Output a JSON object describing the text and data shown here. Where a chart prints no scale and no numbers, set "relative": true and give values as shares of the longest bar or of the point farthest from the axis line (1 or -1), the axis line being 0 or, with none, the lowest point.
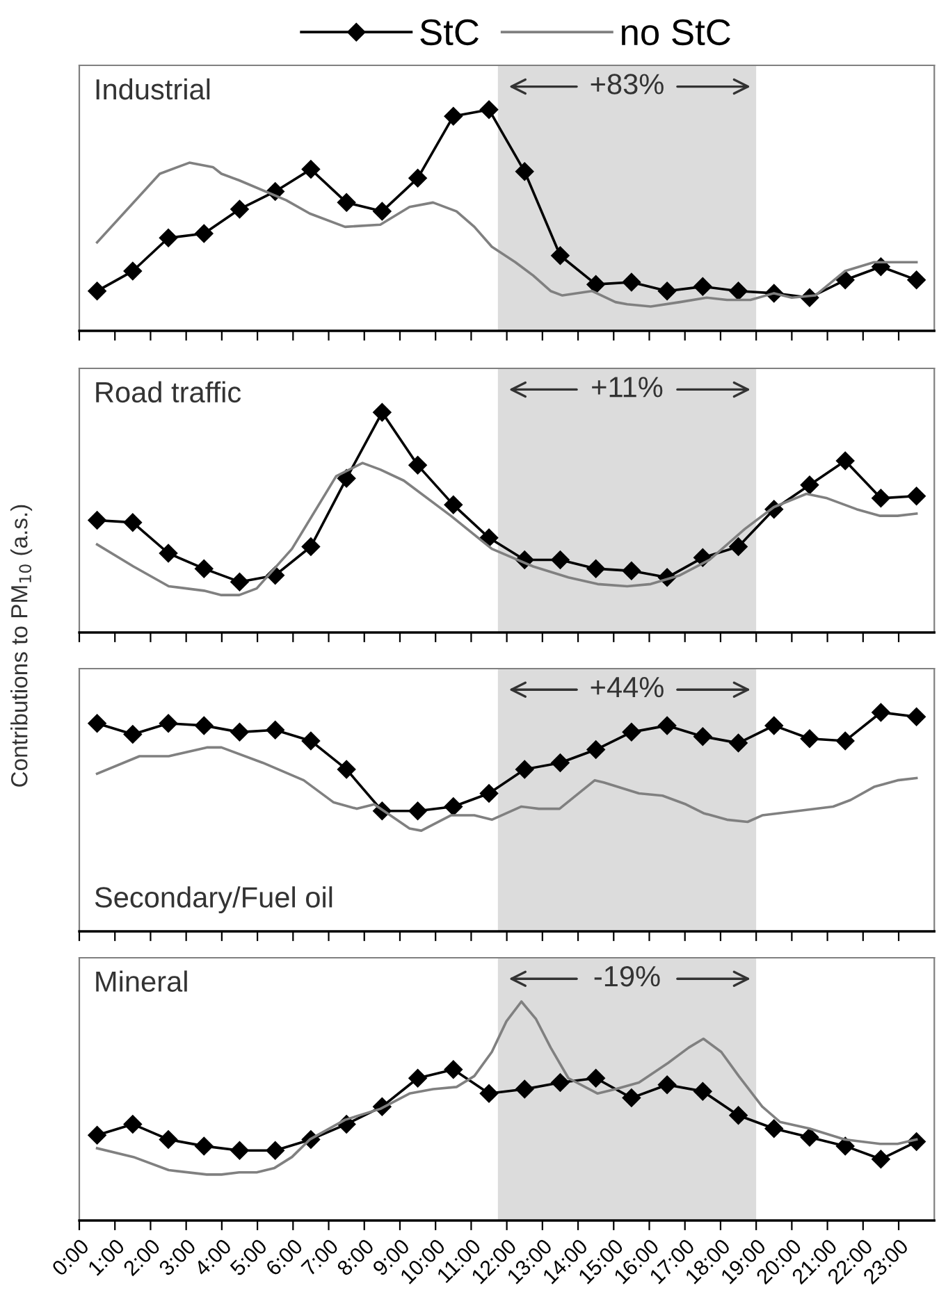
{
  "chart_data": [
    {
      "type": "line",
      "title": "Industrial",
      "relative": true,
      "xlim": [
        0,
        24
      ],
      "xticks": [
        0,
        1,
        2,
        3,
        4,
        5,
        6,
        7,
        8,
        9,
        10,
        11,
        12,
        13,
        14,
        15,
        16,
        17,
        18,
        19,
        20,
        21,
        22,
        23
      ],
      "tick_labels": false,
      "legend": "top",
      "bands": [
        {
          "axis": "x",
          "from": 11.75,
          "to": 19,
          "label": "+83%",
          "color": "#dcdcdc"
        }
      ],
      "series": [
        {
          "name": "StC",
          "color": "#000000",
          "marker": "diamond",
          "x": [
            0.5,
            1.5,
            2.5,
            3.5,
            4.5,
            5.5,
            6.5,
            7.5,
            8.5,
            9.5,
            10.5,
            11.5,
            12.5,
            13.5,
            14.5,
            15.5,
            16.5,
            17.5,
            18.5,
            19.5,
            20.5,
            21.5,
            22.5,
            23.5
          ],
          "values": [
            0.18,
            0.27,
            0.42,
            0.44,
            0.55,
            0.63,
            0.73,
            0.58,
            0.54,
            0.69,
            0.97,
            1.0,
            0.72,
            0.34,
            0.21,
            0.22,
            0.18,
            0.2,
            0.18,
            0.17,
            0.15,
            0.23,
            0.29,
            0.23
          ]
        },
        {
          "name": "no StC",
          "color": "#808080",
          "x": [
            0.5,
            2.26,
            3.09,
            3.75,
            3.99,
            4.49,
            5.81,
            6.47,
            7.46,
            8.45,
            9.27,
            9.93,
            10.59,
            11.09,
            11.58,
            12.24,
            12.74,
            13.23,
            13.56,
            14.39,
            15.05,
            15.38,
            16.04,
            16.86,
            17.61,
            18.18,
            18.84,
            19.5,
            20.0,
            20.66,
            21.49,
            22.31,
            22.97,
            23.5
          ],
          "values": [
            0.4,
            0.71,
            0.76,
            0.74,
            0.71,
            0.68,
            0.59,
            0.53,
            0.47,
            0.48,
            0.56,
            0.58,
            0.54,
            0.47,
            0.38,
            0.31,
            0.25,
            0.18,
            0.16,
            0.18,
            0.13,
            0.12,
            0.11,
            0.13,
            0.15,
            0.14,
            0.14,
            0.17,
            0.15,
            0.16,
            0.27,
            0.31,
            0.31,
            0.31
          ]
        }
      ]
    },
    {
      "type": "line",
      "title": "Road traffic",
      "ylabel": "Contributions to PM$_{10}$ (a.s.)",
      "relative": true,
      "xlim": [
        0,
        24
      ],
      "xticks": [
        0,
        1,
        2,
        3,
        4,
        5,
        6,
        7,
        8,
        9,
        10,
        11,
        12,
        13,
        14,
        15,
        16,
        17,
        18,
        19,
        20,
        21,
        22,
        23
      ],
      "tick_labels": false,
      "bands": [
        {
          "axis": "x",
          "from": 11.75,
          "to": 19,
          "label": "+11%",
          "color": "#dcdcdc"
        }
      ],
      "series": [
        {
          "color": "#000000",
          "marker": "diamond",
          "x": [
            0.5,
            1.5,
            2.5,
            3.5,
            4.5,
            5.5,
            6.5,
            7.5,
            8.5,
            9.5,
            10.5,
            11.5,
            12.5,
            13.5,
            14.5,
            15.5,
            16.5,
            17.5,
            18.5,
            19.5,
            20.5,
            21.5,
            22.5,
            23.5
          ],
          "values": [
            0.51,
            0.5,
            0.36,
            0.29,
            0.23,
            0.26,
            0.39,
            0.7,
            1.0,
            0.76,
            0.58,
            0.43,
            0.33,
            0.33,
            0.29,
            0.28,
            0.25,
            0.34,
            0.39,
            0.56,
            0.67,
            0.78,
            0.61,
            0.62
          ]
        },
        {
          "color": "#808080",
          "x": [
            0.5,
            1.52,
            2.51,
            3.5,
            3.99,
            4.49,
            4.98,
            5.97,
            7.21,
            7.95,
            8.45,
            9.11,
            10.43,
            11.58,
            12.74,
            13.73,
            14.55,
            15.38,
            16.04,
            16.86,
            17.69,
            18.68,
            19.5,
            20.41,
            20.99,
            21.82,
            22.48,
            22.97,
            23.5
          ],
          "values": [
            0.4,
            0.3,
            0.21,
            0.19,
            0.17,
            0.17,
            0.2,
            0.38,
            0.71,
            0.77,
            0.74,
            0.69,
            0.53,
            0.38,
            0.3,
            0.25,
            0.22,
            0.21,
            0.22,
            0.26,
            0.33,
            0.47,
            0.57,
            0.63,
            0.61,
            0.56,
            0.53,
            0.53,
            0.54
          ]
        }
      ]
    },
    {
      "type": "line",
      "title": "Secondary/Fuel oil",
      "relative": true,
      "xlim": [
        0,
        24
      ],
      "xticks": [
        0,
        1,
        2,
        3,
        4,
        5,
        6,
        7,
        8,
        9,
        10,
        11,
        12,
        13,
        14,
        15,
        16,
        17,
        18,
        19,
        20,
        21,
        22,
        23
      ],
      "tick_labels": false,
      "bands": [
        {
          "axis": "x",
          "from": 11.75,
          "to": 19,
          "label": "+44%",
          "color": "#dcdcdc"
        }
      ],
      "series": [
        {
          "color": "#000000",
          "marker": "diamond",
          "x": [
            0.5,
            1.5,
            2.5,
            3.5,
            4.5,
            5.5,
            6.5,
            7.5,
            8.5,
            9.5,
            10.5,
            11.5,
            12.5,
            13.5,
            14.5,
            15.5,
            16.5,
            17.5,
            18.5,
            19.5,
            20.5,
            21.5,
            22.5,
            23.5
          ],
          "values": [
            0.95,
            0.9,
            0.95,
            0.94,
            0.91,
            0.92,
            0.87,
            0.74,
            0.55,
            0.55,
            0.57,
            0.63,
            0.74,
            0.77,
            0.83,
            0.91,
            0.94,
            0.89,
            0.86,
            0.94,
            0.88,
            0.87,
            1.0,
            0.98
          ]
        },
        {
          "color": "#808080",
          "x": [
            0.5,
            1.69,
            2.51,
            3.58,
            3.99,
            5.15,
            6.3,
            7.13,
            7.79,
            8.28,
            9.27,
            9.6,
            10.43,
            11.09,
            11.58,
            12.41,
            12.9,
            13.48,
            14.47,
            14.72,
            15.71,
            16.37,
            17.03,
            17.52,
            18.18,
            18.76,
            19.17,
            20.17,
            21.16,
            21.65,
            22.31,
            22.97,
            23.5
          ],
          "values": [
            0.72,
            0.8,
            0.8,
            0.84,
            0.84,
            0.77,
            0.69,
            0.59,
            0.56,
            0.58,
            0.47,
            0.46,
            0.53,
            0.53,
            0.51,
            0.57,
            0.56,
            0.56,
            0.69,
            0.68,
            0.63,
            0.62,
            0.58,
            0.54,
            0.51,
            0.5,
            0.53,
            0.55,
            0.57,
            0.6,
            0.66,
            0.69,
            0.7
          ]
        }
      ]
    },
    {
      "type": "line",
      "title": "Mineral",
      "relative": true,
      "xlim": [
        0,
        24
      ],
      "tick_labels": "x",
      "xticks": [
        {
          "value": 0,
          "label": "0:00"
        },
        {
          "value": 1,
          "label": "1:00"
        },
        {
          "value": 2,
          "label": "2:00"
        },
        {
          "value": 3,
          "label": "3:00"
        },
        {
          "value": 4,
          "label": "4:00"
        },
        {
          "value": 5,
          "label": "5:00"
        },
        {
          "value": 6,
          "label": "6:00"
        },
        {
          "value": 7,
          "label": "7:00"
        },
        {
          "value": 8,
          "label": "8:00"
        },
        {
          "value": 9,
          "label": "9:00"
        },
        {
          "value": 10,
          "label": "10:00"
        },
        {
          "value": 11,
          "label": "11:00"
        },
        {
          "value": 12,
          "label": "12:00"
        },
        {
          "value": 13,
          "label": "13:00"
        },
        {
          "value": 14,
          "label": "14:00"
        },
        {
          "value": 15,
          "label": "15:00"
        },
        {
          "value": 16,
          "label": "16:00"
        },
        {
          "value": 17,
          "label": "17:00"
        },
        {
          "value": 18,
          "label": "18:00"
        },
        {
          "value": 19,
          "label": "19:00"
        },
        {
          "value": 20,
          "label": "20:00"
        },
        {
          "value": 21,
          "label": "21:00"
        },
        {
          "value": 22,
          "label": "22:00"
        },
        {
          "value": 23,
          "label": "23:00"
        }
      ],
      "bands": [
        {
          "axis": "x",
          "from": 11.75,
          "to": 19,
          "label": "-19%",
          "color": "#dcdcdc"
        }
      ],
      "series": [
        {
          "color": "#000000",
          "marker": "diamond",
          "x": [
            0.5,
            1.5,
            2.5,
            3.5,
            4.5,
            5.5,
            6.5,
            7.5,
            8.5,
            9.5,
            10.5,
            11.5,
            12.5,
            13.5,
            14.5,
            15.5,
            16.5,
            17.5,
            18.5,
            19.5,
            20.5,
            21.5,
            22.5,
            23.5
          ],
          "values": [
            0.39,
            0.44,
            0.37,
            0.34,
            0.32,
            0.32,
            0.37,
            0.44,
            0.52,
            0.65,
            0.69,
            0.58,
            0.6,
            0.63,
            0.65,
            0.56,
            0.62,
            0.59,
            0.48,
            0.42,
            0.38,
            0.34,
            0.28,
            0.36
          ]
        },
        {
          "color": "#808080",
          "x": [
            0.5,
            1.52,
            2.51,
            3.58,
            3.99,
            4.49,
            4.98,
            5.48,
            5.97,
            6.47,
            7.46,
            8.45,
            9.27,
            9.93,
            10.59,
            11.09,
            11.58,
            11.99,
            12.41,
            12.82,
            13.23,
            13.73,
            14.55,
            15.05,
            15.71,
            16.53,
            17.11,
            17.52,
            18.02,
            18.51,
            19.17,
            19.67,
            20.5,
            21.49,
            22.48,
            22.97,
            23.5
          ],
          "values": [
            0.33,
            0.29,
            0.23,
            0.21,
            0.21,
            0.22,
            0.22,
            0.24,
            0.29,
            0.37,
            0.46,
            0.51,
            0.58,
            0.6,
            0.61,
            0.66,
            0.77,
            0.91,
            1.0,
            0.92,
            0.79,
            0.65,
            0.58,
            0.6,
            0.63,
            0.72,
            0.79,
            0.83,
            0.77,
            0.66,
            0.52,
            0.45,
            0.42,
            0.37,
            0.35,
            0.35,
            0.37
          ]
        }
      ]
    }
  ]
}
